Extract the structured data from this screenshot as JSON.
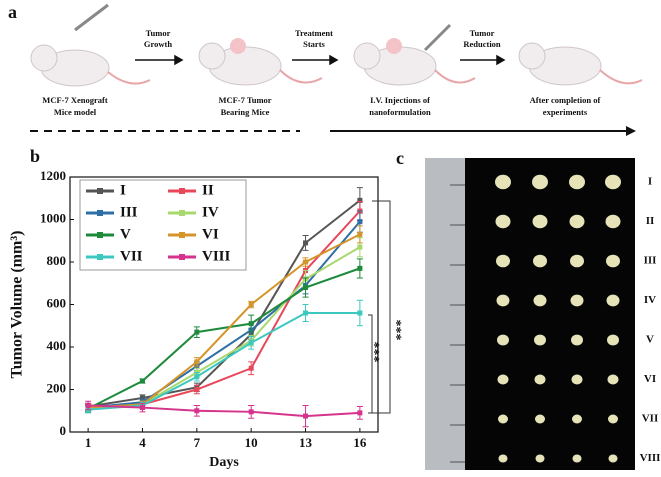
{
  "panel_a": {
    "label": "a",
    "steps": [
      [
        "Tumor",
        "Growth"
      ],
      [
        "Treatment",
        "Starts"
      ],
      [
        "Tumor",
        "Reduction"
      ]
    ],
    "captions": [
      [
        "MCF-7 Xenograft",
        "Mice model"
      ],
      [
        "MCF-7 Tumor",
        "Bearing Mice"
      ],
      [
        "I.V. Injections of",
        "nanoformulation"
      ],
      [
        "After completion of",
        "experiments"
      ]
    ]
  },
  "chart_data": {
    "type": "line",
    "label": "b",
    "xlabel": "Days",
    "ylabel": "Tumor Volume (mm³)",
    "x": [
      1,
      4,
      7,
      10,
      13,
      16
    ],
    "xlim": [
      0,
      17
    ],
    "xticks": [
      1,
      4,
      7,
      10,
      13,
      16
    ],
    "ylim": [
      0,
      1200
    ],
    "yticks": [
      0,
      200,
      400,
      600,
      800,
      1000,
      1200
    ],
    "legend": "upper left",
    "series": [
      {
        "name": "I",
        "color": "#555555",
        "values": [
          120,
          160,
          210,
          460,
          890,
          1090
        ],
        "errors": [
          15,
          15,
          20,
          25,
          35,
          60
        ]
      },
      {
        "name": "II",
        "color": "#e8475a",
        "values": [
          120,
          130,
          200,
          300,
          760,
          1040
        ],
        "errors": [
          15,
          15,
          20,
          30,
          40,
          45
        ]
      },
      {
        "name": "III",
        "color": "#2e6fa7",
        "values": [
          115,
          140,
          310,
          480,
          690,
          990
        ],
        "errors": [
          15,
          15,
          20,
          30,
          40,
          50
        ]
      },
      {
        "name": "IV",
        "color": "#a8d86e",
        "values": [
          110,
          130,
          280,
          430,
          720,
          870
        ],
        "errors": [
          15,
          15,
          20,
          25,
          40,
          45
        ]
      },
      {
        "name": "V",
        "color": "#1e8a3c",
        "values": [
          110,
          240,
          470,
          510,
          680,
          770
        ],
        "errors": [
          15,
          10,
          25,
          40,
          45,
          45
        ]
      },
      {
        "name": "VI",
        "color": "#d4952a",
        "values": [
          115,
          130,
          330,
          600,
          800,
          930
        ],
        "errors": [
          15,
          15,
          20,
          15,
          20,
          40
        ]
      },
      {
        "name": "VII",
        "color": "#3cc8c0",
        "values": [
          105,
          125,
          260,
          420,
          560,
          560
        ],
        "errors": [
          15,
          15,
          20,
          30,
          40,
          60
        ]
      },
      {
        "name": "VIII",
        "color": "#d6338c",
        "values": [
          125,
          115,
          100,
          95,
          75,
          90
        ],
        "errors": [
          20,
          20,
          25,
          30,
          50,
          30
        ]
      }
    ],
    "annotations": [
      "***",
      "***"
    ]
  },
  "panel_c": {
    "label": "c",
    "rows": [
      "I",
      "II",
      "III",
      "IV",
      "V",
      "VI",
      "VII",
      "VIII"
    ]
  }
}
